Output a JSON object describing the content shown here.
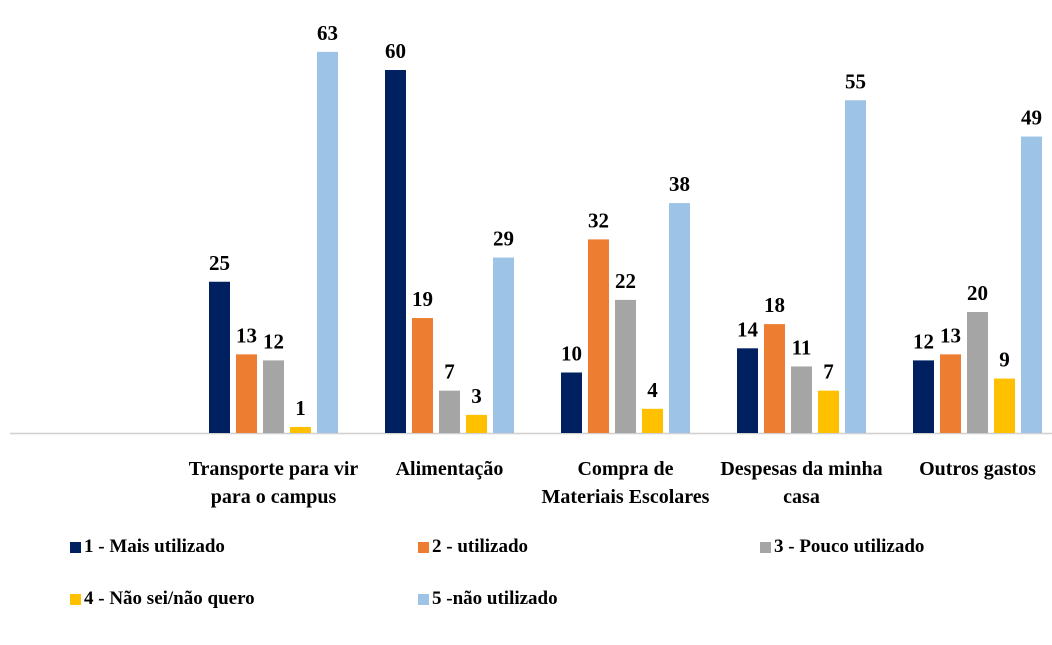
{
  "chart_data": {
    "type": "bar",
    "categories": [
      "Transporte para vir para o campus",
      "Alimentação",
      "Compra de Materiais Escolares",
      "Despesas da minha casa",
      "Outros gastos"
    ],
    "series": [
      {
        "name": "1 - Mais utilizado",
        "color": "#002060",
        "values": [
          25,
          60,
          10,
          14,
          12
        ]
      },
      {
        "name": "2 - utilizado",
        "color": "#ED7D31",
        "values": [
          13,
          19,
          32,
          18,
          13
        ]
      },
      {
        "name": "3 - Pouco utilizado",
        "color": "#A5A5A5",
        "values": [
          12,
          7,
          22,
          11,
          20
        ]
      },
      {
        "name": "4 - Não sei/não quero",
        "color": "#FFC000",
        "values": [
          1,
          3,
          4,
          7,
          9
        ]
      },
      {
        "name": "5 -não utilizado",
        "color": "#9DC3E6",
        "values": [
          63,
          29,
          38,
          55,
          49
        ]
      }
    ]
  }
}
